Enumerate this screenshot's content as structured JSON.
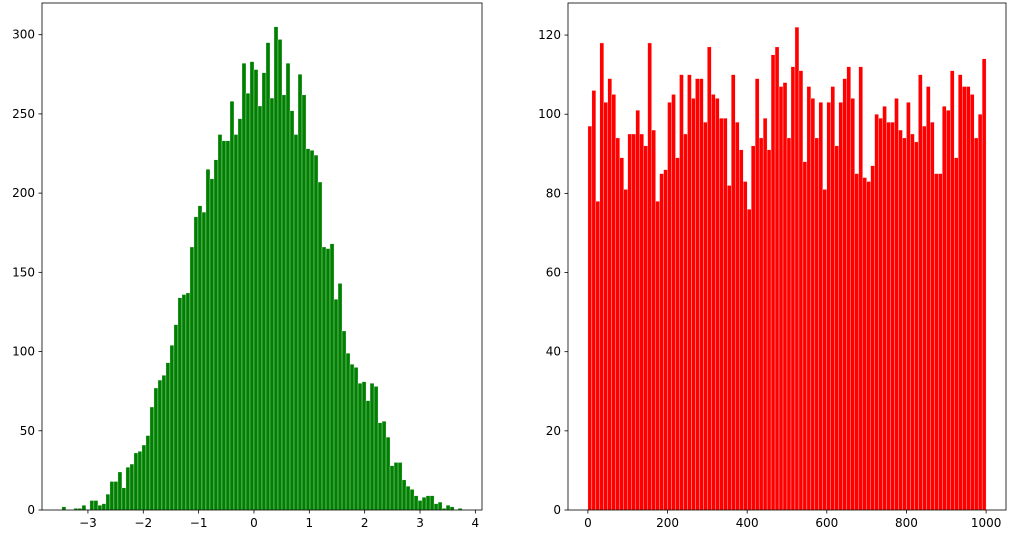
{
  "chart_data": [
    {
      "type": "histogram",
      "color": "#008000",
      "bins": [
        -3.47,
        -3.3977,
        -3.3254,
        -3.2531,
        -3.1808,
        -3.1085,
        -3.0362,
        -2.9639,
        -2.8916,
        -2.8193,
        -2.747,
        -2.6747,
        -2.6024,
        -2.5301,
        -2.4578,
        -2.3855,
        -2.3132,
        -2.2409,
        -2.1686,
        -2.0963,
        -2.024,
        -1.9517,
        -1.8794,
        -1.8071,
        -1.7348,
        -1.6625,
        -1.5902,
        -1.5179,
        -1.4456,
        -1.3733,
        -1.301,
        -1.2287,
        -1.1564,
        -1.0841,
        -1.0118,
        -0.9395,
        -0.8672,
        -0.7949,
        -0.7226,
        -0.6503,
        -0.578,
        -0.5057,
        -0.4334,
        -0.3611,
        -0.2888,
        -0.2165,
        -0.1442,
        -0.0719,
        0.0004,
        0.0727,
        0.145,
        0.2173,
        0.2896,
        0.3619,
        0.4342,
        0.5065,
        0.5788,
        0.6511,
        0.7234,
        0.7957,
        0.868,
        0.9403,
        1.0126,
        1.0849,
        1.1572,
        1.2295,
        1.3018,
        1.3741,
        1.4464,
        1.5187,
        1.591,
        1.6633,
        1.7356,
        1.8079,
        1.8802,
        1.9525,
        2.0248,
        2.0971,
        2.1694,
        2.2417,
        2.314,
        2.3863,
        2.4586,
        2.5309,
        2.6032,
        2.6755,
        2.7478,
        2.8201,
        2.8924,
        2.9647,
        3.037,
        3.1093,
        3.1816,
        3.2539,
        3.3262,
        3.3985,
        3.4708,
        3.5431,
        3.6154,
        3.6877,
        3.76
      ],
      "values": [
        2,
        0,
        0,
        1,
        1,
        3,
        0,
        6,
        6,
        3,
        4,
        10,
        18,
        18,
        24,
        14,
        27,
        29,
        36,
        37,
        41,
        47,
        65,
        77,
        82,
        85,
        93,
        104,
        117,
        134,
        136,
        137,
        166,
        185,
        192,
        188,
        215,
        209,
        221,
        237,
        233,
        233,
        258,
        237,
        247,
        282,
        263,
        283,
        278,
        255,
        276,
        295,
        260,
        305,
        297,
        262,
        282,
        252,
        237,
        275,
        262,
        228,
        227,
        224,
        207,
        166,
        165,
        168,
        133,
        143,
        113,
        99,
        92,
        90,
        80,
        81,
        69,
        80,
        78,
        55,
        56,
        46,
        28,
        30,
        30,
        19,
        15,
        13,
        9,
        6,
        8,
        9,
        9,
        4,
        5,
        1,
        3,
        2,
        0,
        1
      ],
      "xlim": [
        -3.83,
        4.12
      ],
      "ylim": [
        0,
        320
      ],
      "xticks": [
        {
          "value": -3,
          "label": "−3"
        },
        {
          "value": -2,
          "label": "−2"
        },
        {
          "value": -1,
          "label": "−1"
        },
        0,
        1,
        2,
        3,
        4
      ],
      "yticks": [
        0,
        50,
        100,
        150,
        200,
        250,
        300
      ]
    },
    {
      "type": "histogram",
      "color": "#ff0000",
      "bins": [
        0,
        10,
        20,
        30,
        40,
        50,
        60,
        70,
        80,
        90,
        100,
        110,
        120,
        130,
        140,
        150,
        160,
        170,
        180,
        190,
        200,
        210,
        220,
        230,
        240,
        250,
        260,
        270,
        280,
        290,
        300,
        310,
        320,
        330,
        340,
        350,
        360,
        370,
        380,
        390,
        400,
        410,
        420,
        430,
        440,
        450,
        460,
        470,
        480,
        490,
        500,
        510,
        520,
        530,
        540,
        550,
        560,
        570,
        580,
        590,
        600,
        610,
        620,
        630,
        640,
        650,
        660,
        670,
        680,
        690,
        700,
        710,
        720,
        730,
        740,
        750,
        760,
        770,
        780,
        790,
        800,
        810,
        820,
        830,
        840,
        850,
        860,
        870,
        880,
        890,
        900,
        910,
        920,
        930,
        940,
        950,
        960,
        970,
        980,
        990,
        1000
      ],
      "values": [
        97,
        106,
        78,
        118,
        103,
        109,
        105,
        94,
        89,
        81,
        95,
        95,
        101,
        95,
        92,
        118,
        96,
        78,
        85,
        86,
        103,
        105,
        89,
        110,
        95,
        110,
        104,
        109,
        109,
        98,
        117,
        105,
        104,
        99,
        99,
        82,
        110,
        98,
        91,
        83,
        76,
        92,
        109,
        94,
        99,
        91,
        115,
        117,
        107,
        108,
        94,
        112,
        122,
        111,
        88,
        107,
        104,
        94,
        103,
        81,
        103,
        107,
        92,
        103,
        109,
        112,
        104,
        85,
        112,
        84,
        83,
        87,
        100,
        99,
        102,
        98,
        98,
        104,
        96,
        94,
        103,
        95,
        93,
        110,
        97,
        107,
        98,
        85,
        85,
        102,
        101,
        111,
        89,
        110,
        107,
        107,
        105,
        94,
        100,
        114
      ],
      "xlim": [
        -50,
        1050
      ],
      "ylim": [
        0,
        128.1
      ],
      "xticks": [
        0,
        200,
        400,
        600,
        800,
        1000
      ],
      "yticks": [
        0,
        20,
        40,
        60,
        80,
        100,
        120
      ]
    }
  ]
}
